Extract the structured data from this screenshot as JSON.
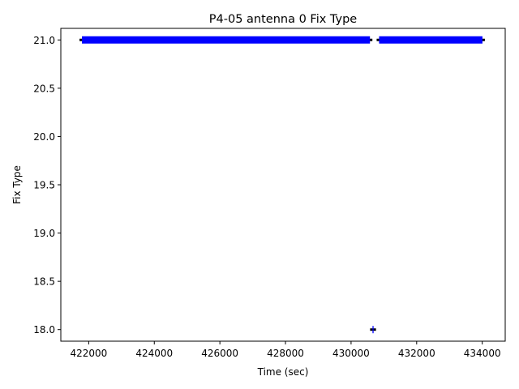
{
  "chart_data": {
    "type": "scatter",
    "title": "P4-05 antenna 0 Fix Type",
    "xlabel": "Time (sec)",
    "ylabel": "Fix Type",
    "xlim": [
      421150,
      434700
    ],
    "ylim": [
      17.88,
      21.12
    ],
    "x_ticks": [
      422000,
      424000,
      426000,
      428000,
      430000,
      432000,
      434000
    ],
    "y_ticks": [
      18.0,
      18.5,
      19.0,
      19.5,
      20.0,
      20.5,
      21.0
    ],
    "x_tick_labels": [
      "422000",
      "424000",
      "426000",
      "428000",
      "430000",
      "432000",
      "434000"
    ],
    "y_tick_labels": [
      "18.0",
      "18.5",
      "19.0",
      "19.5",
      "20.0",
      "20.5",
      "21.0"
    ],
    "grid": false,
    "series": [
      {
        "color": "#0000ff",
        "segments": [
          {
            "x_start": 421720,
            "x_end": 430650,
            "y": 21.0
          },
          {
            "x_start": 430780,
            "x_end": 434080,
            "y": 21.0
          },
          {
            "x_start": 430580,
            "x_end": 430760,
            "y": 18.0
          }
        ]
      }
    ]
  }
}
